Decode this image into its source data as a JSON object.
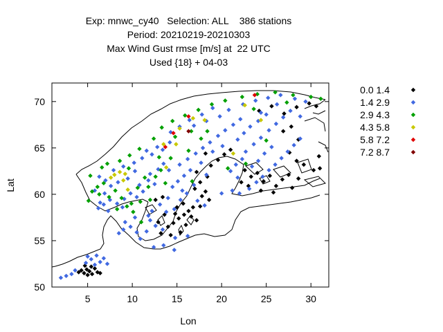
{
  "chart_data": {
    "type": "scatter",
    "title_lines": [
      "Exp: mnwc_cy40   Selection: ALL    386 stations",
      "Period: 20210219-20210303",
      "Max Wind Gust rmse [m/s] at  22 UTC",
      "Used {18} + 04-03"
    ],
    "xlabel": "Lon",
    "ylabel": "Lat",
    "xlim": [
      1,
      32
    ],
    "ylim": [
      50,
      72
    ],
    "xticks": [
      5,
      10,
      15,
      20,
      25,
      30
    ],
    "yticks": [
      50,
      55,
      60,
      65,
      70
    ],
    "grid": false,
    "legend_position": "outside-right",
    "series": [
      {
        "name": "0.0 1.4",
        "color": "#000000",
        "points": [
          [
            4.3,
            51.8
          ],
          [
            4.6,
            51.5
          ],
          [
            4.9,
            51.9
          ],
          [
            5.2,
            51.7
          ],
          [
            5.5,
            51.4
          ],
          [
            5.8,
            52.0
          ],
          [
            6.1,
            51.6
          ],
          [
            4.0,
            51.6
          ],
          [
            5.0,
            51.3
          ],
          [
            5.4,
            52.2
          ],
          [
            6.4,
            51.5
          ],
          [
            4.7,
            52.3
          ],
          [
            14.0,
            56.5
          ],
          [
            14.6,
            56.9
          ],
          [
            15.2,
            57.4
          ],
          [
            15.8,
            57.8
          ],
          [
            16.3,
            58.2
          ],
          [
            15.0,
            58.6
          ],
          [
            16.8,
            58.6
          ],
          [
            13.6,
            57.8
          ],
          [
            14.8,
            57.9
          ],
          [
            16.0,
            56.7
          ],
          [
            17.2,
            57.2
          ],
          [
            15.4,
            55.9
          ],
          [
            14.3,
            55.6
          ],
          [
            13.2,
            55.8
          ],
          [
            16.6,
            57.6
          ],
          [
            12.9,
            57.0
          ],
          [
            15.7,
            59.0
          ],
          [
            17.6,
            58.7
          ],
          [
            12.6,
            59.4
          ],
          [
            13.4,
            59.7
          ],
          [
            17.8,
            59.8
          ],
          [
            18.2,
            60.3
          ],
          [
            18.6,
            59.4
          ],
          [
            17.0,
            60.6
          ],
          [
            17.6,
            61.3
          ],
          [
            18.4,
            61.9
          ],
          [
            17.2,
            62.4
          ],
          [
            18.8,
            63.1
          ],
          [
            19.6,
            63.7
          ],
          [
            20.3,
            64.3
          ],
          [
            21.0,
            64.8
          ],
          [
            18.2,
            64.4
          ],
          [
            22.6,
            62.6
          ],
          [
            23.3,
            61.9
          ],
          [
            24.0,
            62.3
          ],
          [
            24.7,
            61.4
          ],
          [
            25.4,
            62.0
          ],
          [
            26.1,
            60.9
          ],
          [
            26.8,
            61.6
          ],
          [
            27.5,
            62.1
          ],
          [
            23.0,
            60.9
          ],
          [
            24.4,
            60.4
          ],
          [
            25.8,
            60.2
          ],
          [
            22.2,
            61.3
          ],
          [
            27.9,
            60.7
          ],
          [
            28.6,
            61.7
          ],
          [
            28.4,
            63.6
          ],
          [
            29.2,
            63.2
          ],
          [
            30.3,
            62.6
          ],
          [
            30.9,
            64.1
          ],
          [
            31.0,
            62.8
          ],
          [
            27.6,
            64.5
          ],
          [
            26.9,
            66.8
          ],
          [
            24.2,
            69.0
          ],
          [
            25.6,
            69.5
          ],
          [
            27.0,
            68.7
          ],
          [
            28.4,
            69.4
          ],
          [
            29.8,
            69.8
          ],
          [
            30.6,
            69.5
          ],
          [
            27.8,
            67.3
          ],
          [
            28.6,
            65.9
          ]
        ]
      },
      {
        "name": "1.4 2.9",
        "color": "#4169e1",
        "points": [
          [
            2.0,
            51.0
          ],
          [
            2.6,
            51.2
          ],
          [
            3.2,
            51.4
          ],
          [
            3.6,
            51.8
          ],
          [
            4.8,
            52.6
          ],
          [
            5.4,
            53.0
          ],
          [
            6.0,
            53.4
          ],
          [
            6.8,
            53.1
          ],
          [
            6.4,
            52.7
          ],
          [
            5.8,
            52.4
          ],
          [
            7.2,
            52.5
          ],
          [
            5.0,
            53.3
          ],
          [
            6.2,
            58.5
          ],
          [
            6.8,
            58.9
          ],
          [
            7.5,
            59.4
          ],
          [
            8.3,
            59.0
          ],
          [
            9.1,
            59.5
          ],
          [
            9.8,
            60.1
          ],
          [
            10.5,
            59.7
          ],
          [
            11.2,
            60.3
          ],
          [
            10.8,
            61.0
          ],
          [
            11.8,
            61.5
          ],
          [
            12.5,
            61.1
          ],
          [
            12.0,
            62.2
          ],
          [
            10.3,
            62.5
          ],
          [
            9.5,
            61.7
          ],
          [
            8.4,
            61.3
          ],
          [
            7.6,
            60.9
          ],
          [
            7.0,
            61.5
          ],
          [
            6.3,
            61.9
          ],
          [
            7.9,
            62.6
          ],
          [
            9.0,
            63.0
          ],
          [
            10.2,
            63.4
          ],
          [
            11.1,
            63.9
          ],
          [
            12.2,
            64.3
          ],
          [
            13.4,
            64.8
          ],
          [
            14.2,
            65.6
          ],
          [
            12.8,
            65.1
          ],
          [
            11.6,
            64.7
          ],
          [
            13.5,
            63.3
          ],
          [
            14.1,
            62.6
          ],
          [
            12.9,
            62.7
          ],
          [
            14.5,
            60.8
          ],
          [
            15.1,
            61.4
          ],
          [
            15.8,
            62.0
          ],
          [
            16.5,
            62.6
          ],
          [
            15.3,
            63.2
          ],
          [
            16.2,
            63.8
          ],
          [
            17.1,
            64.4
          ],
          [
            17.9,
            65.0
          ],
          [
            18.7,
            65.6
          ],
          [
            19.6,
            66.3
          ],
          [
            20.4,
            66.9
          ],
          [
            21.3,
            67.5
          ],
          [
            22.1,
            68.1
          ],
          [
            20.1,
            65.2
          ],
          [
            19.0,
            64.6
          ],
          [
            17.7,
            63.4
          ],
          [
            18.3,
            62.1
          ],
          [
            16.9,
            61.0
          ],
          [
            15.6,
            60.4
          ],
          [
            14.0,
            59.6
          ],
          [
            13.1,
            58.9
          ],
          [
            12.2,
            58.2
          ],
          [
            12.0,
            57.2
          ],
          [
            13.8,
            58.1
          ],
          [
            14.7,
            58.4
          ],
          [
            15.4,
            59.4
          ],
          [
            16.1,
            60.1
          ],
          [
            17.3,
            59.3
          ],
          [
            18.1,
            58.8
          ],
          [
            16.2,
            55.5
          ],
          [
            14.8,
            55.3
          ],
          [
            13.4,
            56.2
          ],
          [
            12.6,
            56.6
          ],
          [
            11.8,
            57.7
          ],
          [
            20.0,
            60.1
          ],
          [
            21.2,
            60.4
          ],
          [
            22.0,
            60.1
          ],
          [
            23.1,
            60.6
          ],
          [
            23.9,
            61.3
          ],
          [
            24.6,
            61.9
          ],
          [
            25.3,
            62.6
          ],
          [
            26.0,
            63.2
          ],
          [
            26.7,
            63.9
          ],
          [
            27.4,
            64.6
          ],
          [
            28.1,
            65.3
          ],
          [
            28.8,
            66.0
          ],
          [
            25.6,
            65.1
          ],
          [
            24.8,
            64.4
          ],
          [
            24.1,
            63.6
          ],
          [
            23.4,
            63.0
          ],
          [
            22.3,
            63.8
          ],
          [
            21.6,
            63.2
          ],
          [
            21.0,
            62.5
          ],
          [
            21.8,
            61.8
          ],
          [
            22.7,
            64.6
          ],
          [
            23.6,
            65.4
          ],
          [
            24.4,
            66.1
          ],
          [
            25.3,
            66.9
          ],
          [
            26.1,
            67.6
          ],
          [
            26.9,
            68.3
          ],
          [
            27.7,
            69.0
          ],
          [
            28.8,
            68.4
          ],
          [
            25.0,
            68.6
          ],
          [
            24.1,
            67.9
          ],
          [
            23.2,
            67.3
          ],
          [
            22.5,
            66.6
          ],
          [
            21.8,
            65.9
          ],
          [
            20.8,
            69.1
          ],
          [
            22.4,
            69.7
          ],
          [
            23.8,
            70.1
          ],
          [
            25.2,
            70.4
          ],
          [
            26.6,
            70.7
          ],
          [
            28.2,
            70.3
          ],
          [
            29.4,
            70.0
          ],
          [
            26.2,
            69.7
          ],
          [
            24.4,
            68.8
          ],
          [
            19.0,
            69.3
          ],
          [
            17.8,
            68.6
          ],
          [
            16.4,
            68.0
          ],
          [
            15.3,
            67.3
          ],
          [
            14.3,
            66.7
          ],
          [
            16.9,
            67.4
          ],
          [
            18.3,
            67.9
          ],
          [
            19.8,
            68.4
          ],
          [
            13.5,
            54.5
          ],
          [
            12.4,
            54.3
          ],
          [
            14.7,
            54.0
          ],
          [
            10.9,
            55.2
          ],
          [
            11.6,
            56.0
          ],
          [
            9.8,
            56.5
          ],
          [
            9.2,
            57.0
          ],
          [
            10.3,
            57.5
          ],
          [
            9.0,
            56.2
          ],
          [
            8.5,
            55.8
          ],
          [
            10.5,
            55.9
          ],
          [
            6.4,
            59.1
          ],
          [
            5.8,
            60.4
          ],
          [
            6.9,
            60.1
          ],
          [
            8.9,
            58.6
          ],
          [
            7.3,
            58.2
          ]
        ]
      },
      {
        "name": "2.9 4.3",
        "color": "#00a000",
        "points": [
          [
            5.1,
            59.3
          ],
          [
            5.5,
            60.3
          ],
          [
            6.1,
            60.8
          ],
          [
            6.8,
            61.2
          ],
          [
            5.3,
            62.0
          ],
          [
            6.6,
            62.9
          ],
          [
            7.2,
            63.3
          ],
          [
            8.6,
            63.6
          ],
          [
            9.7,
            64.2
          ],
          [
            10.8,
            64.9
          ],
          [
            12.4,
            66.0
          ],
          [
            13.3,
            67.2
          ],
          [
            14.5,
            67.9
          ],
          [
            15.9,
            68.5
          ],
          [
            17.4,
            69.1
          ],
          [
            18.9,
            69.7
          ],
          [
            20.4,
            70.1
          ],
          [
            22.3,
            70.5
          ],
          [
            24.0,
            70.8
          ],
          [
            26.0,
            71.0
          ],
          [
            28.0,
            70.7
          ],
          [
            30.0,
            70.5
          ],
          [
            31.1,
            70.3
          ],
          [
            27.3,
            69.9
          ],
          [
            8.8,
            59.6
          ],
          [
            9.9,
            59.0
          ],
          [
            10.6,
            60.7
          ],
          [
            11.4,
            61.8
          ],
          [
            9.6,
            62.8
          ],
          [
            8.1,
            60.4
          ],
          [
            7.4,
            59.7
          ],
          [
            8.3,
            58.4
          ],
          [
            9.4,
            58.7
          ],
          [
            10.9,
            59.2
          ],
          [
            11.8,
            60.8
          ],
          [
            12.6,
            61.9
          ],
          [
            13.2,
            62.6
          ],
          [
            14.3,
            63.9
          ],
          [
            13.0,
            64.0
          ],
          [
            14.8,
            66.2
          ],
          [
            16.6,
            66.8
          ],
          [
            17.7,
            66.0
          ],
          [
            12.0,
            59.4
          ],
          [
            13.7,
            61.2
          ],
          [
            16.3,
            64.7
          ],
          [
            16.7,
            61.4
          ],
          [
            20.7,
            62.8
          ],
          [
            22.7,
            63.3
          ],
          [
            25.0,
            65.8
          ],
          [
            23.6,
            69.2
          ],
          [
            18.4,
            66.8
          ],
          [
            10.1,
            58.1
          ],
          [
            6.3,
            60.0
          ],
          [
            11.0,
            57.0
          ]
        ]
      },
      {
        "name": "4.3 5.8",
        "color": "#c8c800",
        "points": [
          [
            8.0,
            62.1
          ],
          [
            8.6,
            62.4
          ],
          [
            9.2,
            62.2
          ],
          [
            7.6,
            61.8
          ],
          [
            9.5,
            60.5
          ],
          [
            13.5,
            65.4
          ],
          [
            14.9,
            65.4
          ],
          [
            15.3,
            67.1
          ],
          [
            16.8,
            68.2
          ],
          [
            18.1,
            68.0
          ],
          [
            22.6,
            69.6
          ],
          [
            24.4,
            68.0
          ],
          [
            9.0,
            61.5
          ],
          [
            13.8,
            62.9
          ],
          [
            21.3,
            64.4
          ]
        ]
      },
      {
        "name": "5.8 7.2",
        "color": "#e00000",
        "points": [
          [
            23.7,
            70.7
          ],
          [
            14.6,
            66.6
          ],
          [
            13.7,
            65.1
          ],
          [
            16.3,
            68.4
          ]
        ]
      },
      {
        "name": "7.2 8.7",
        "color": "#800000",
        "points": [
          [
            16.3,
            66.8
          ]
        ]
      }
    ]
  }
}
